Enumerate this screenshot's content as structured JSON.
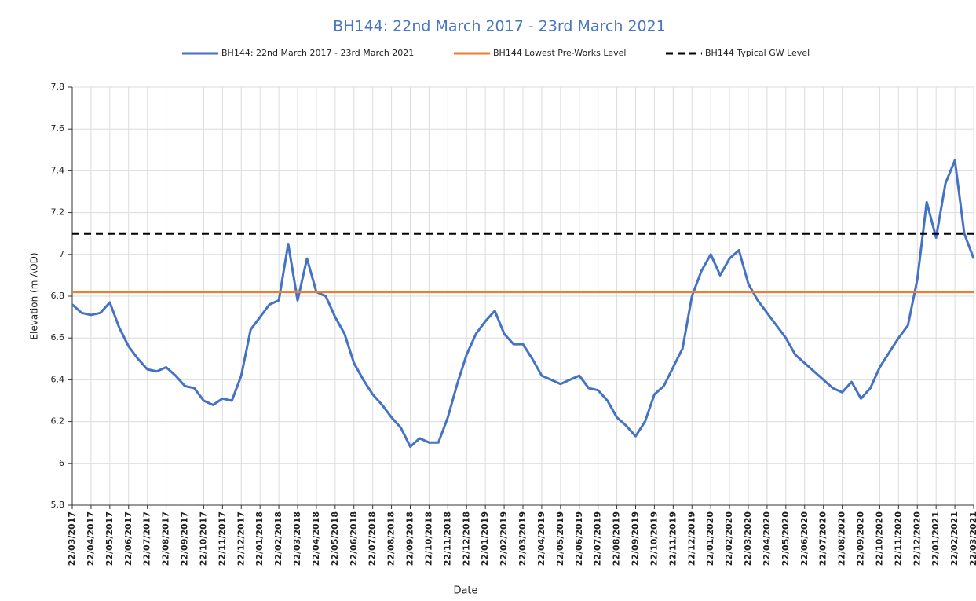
{
  "chart_data": {
    "type": "line",
    "title": "BH144: 22nd March 2017 - 23rd March 2021",
    "xlabel": "Date",
    "ylabel": "Elevation (m AOD)",
    "categories": [
      "22/03/2017",
      null,
      "22/04/2017",
      null,
      "22/05/2017",
      null,
      "22/06/2017",
      null,
      "22/07/2017",
      null,
      "22/08/2017",
      null,
      "22/09/2017",
      null,
      "22/10/2017",
      null,
      "22/11/2017",
      null,
      "22/12/2017",
      null,
      "22/01/2018",
      null,
      "22/02/2018",
      null,
      "22/03/2018",
      null,
      "22/04/2018",
      null,
      "22/05/2018",
      null,
      "22/06/2018",
      null,
      "22/07/2018",
      null,
      "22/08/2018",
      null,
      "22/09/2018",
      null,
      "22/10/2018",
      null,
      "22/11/2018",
      null,
      "22/12/2018",
      null,
      "22/01/2019",
      null,
      "22/02/2019",
      null,
      "22/03/2019",
      null,
      "22/04/2019",
      null,
      "22/05/2019",
      null,
      "22/06/2019",
      null,
      "22/07/2019",
      null,
      "22/08/2019",
      null,
      "22/09/2019",
      null,
      "22/10/2019",
      null,
      "22/11/2019",
      null,
      "22/12/2019",
      null,
      "22/01/2020",
      null,
      "22/02/2020",
      null,
      "22/03/2020",
      null,
      "22/04/2020",
      null,
      "22/05/2020",
      null,
      "22/06/2020",
      null,
      "22/07/2020",
      null,
      "22/08/2020",
      null,
      "22/09/2020",
      null,
      "22/10/2020",
      null,
      "22/11/2020",
      null,
      "22/12/2020",
      null,
      "22/01/2021",
      null,
      "22/02/2021",
      null,
      "22/03/2021"
    ],
    "series": [
      {
        "name": "BH144: 22nd March 2017 - 23rd March 2021",
        "color": "#4472c4",
        "values": [
          6.76,
          6.72,
          6.71,
          6.72,
          6.77,
          6.65,
          6.56,
          6.5,
          6.45,
          6.44,
          6.46,
          6.42,
          6.37,
          6.36,
          6.3,
          6.28,
          6.31,
          6.3,
          6.42,
          6.64,
          6.7,
          6.76,
          6.78,
          7.05,
          6.78,
          6.98,
          6.82,
          6.8,
          6.7,
          6.62,
          6.48,
          6.4,
          6.33,
          6.28,
          6.22,
          6.17,
          6.08,
          6.12,
          6.1,
          6.1,
          6.22,
          6.38,
          6.52,
          6.62,
          6.68,
          6.73,
          6.62,
          6.57,
          6.57,
          6.5,
          6.42,
          6.4,
          6.38,
          6.4,
          6.42,
          6.36,
          6.35,
          6.3,
          6.22,
          6.18,
          6.13,
          6.2,
          6.33,
          6.37,
          6.46,
          6.55,
          6.8,
          6.92,
          7.0,
          6.9,
          6.98,
          7.02,
          6.86,
          6.78,
          6.72,
          6.66,
          6.6,
          6.52,
          6.48,
          6.44,
          6.4,
          6.36,
          6.34,
          6.39,
          6.31,
          6.36,
          6.46,
          6.53,
          6.6,
          6.66,
          6.88,
          7.25,
          7.08,
          7.34,
          7.45,
          7.1,
          6.98
        ]
      },
      {
        "name": "BH144 Lowest Pre-Works Level",
        "color": "#ed7d31",
        "value": 6.82
      },
      {
        "name": "BH144 Typical GW Level",
        "color": "#000000",
        "value": 7.1,
        "dashed": true
      }
    ],
    "ylim": [
      5.8,
      7.8
    ],
    "yticks": [
      5.8,
      6,
      6.2,
      6.4,
      6.6,
      6.8,
      7,
      7.2,
      7.4,
      7.6,
      7.8
    ],
    "grid": true,
    "legend": "top"
  }
}
